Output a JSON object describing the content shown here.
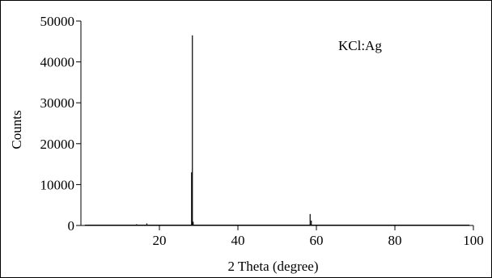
{
  "chart_data": {
    "type": "line",
    "title": "",
    "xlabel": "2 Theta (degree)",
    "ylabel": "Counts",
    "xlim": [
      0,
      100
    ],
    "ylim": [
      0,
      50000
    ],
    "x_ticks": [
      20,
      40,
      60,
      80,
      100
    ],
    "y_ticks": [
      0,
      10000,
      20000,
      30000,
      40000,
      50000
    ],
    "x_tick_labels": [
      "20",
      "40",
      "60",
      "80",
      "100"
    ],
    "y_tick_labels": [
      "0",
      "10000",
      "20000",
      "30000",
      "40000",
      "50000"
    ],
    "grid": false,
    "annotation": "KCl:Ag",
    "series": [
      {
        "color": "#000000",
        "peaks": [
          {
            "x": 14.2,
            "y": 300
          },
          {
            "x": 16.8,
            "y": 500
          },
          {
            "x": 28.2,
            "y": 13000
          },
          {
            "x": 28.4,
            "y": 46500
          },
          {
            "x": 28.6,
            "y": 900
          },
          {
            "x": 58.4,
            "y": 2800
          },
          {
            "x": 58.7,
            "y": 1200
          }
        ]
      }
    ]
  }
}
